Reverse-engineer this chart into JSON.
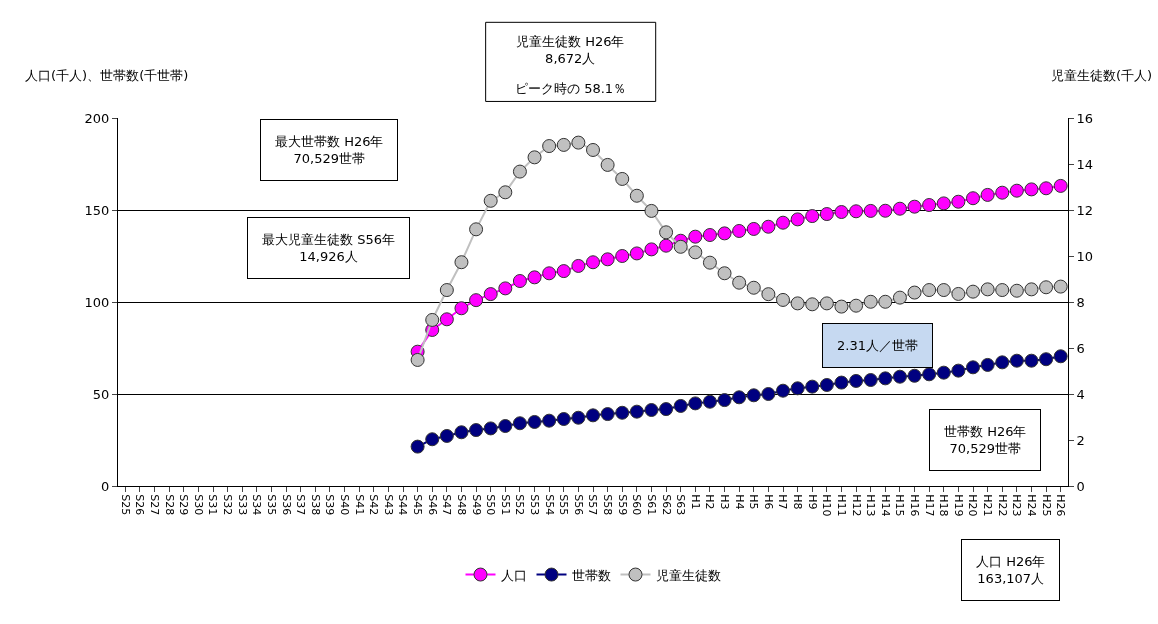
{
  "chart_data": {
    "type": "line",
    "ylabel": "人口(千人)、世帯数(千世帯)",
    "y2label": "児童生徒数(千人)",
    "categories": [
      "S25",
      "S26",
      "S27",
      "S28",
      "S29",
      "S30",
      "S31",
      "S32",
      "S33",
      "S34",
      "S35",
      "S36",
      "S37",
      "S38",
      "S39",
      "S40",
      "S41",
      "S42",
      "S43",
      "S44",
      "S45",
      "S46",
      "S47",
      "S48",
      "S49",
      "S50",
      "S51",
      "S52",
      "S53",
      "S54",
      "S55",
      "S56",
      "S57",
      "S58",
      "S59",
      "S60",
      "S61",
      "S62",
      "S63",
      "H1",
      "H2",
      "H3",
      "H4",
      "H5",
      "H6",
      "H7",
      "H8",
      "H9",
      "H10",
      "H11",
      "H12",
      "H13",
      "H14",
      "H15",
      "H16",
      "H17",
      "H18",
      "H19",
      "H20",
      "H21",
      "H22",
      "H23",
      "H24",
      "H25",
      "H26"
    ],
    "series": [
      {
        "name": "人口",
        "color": "#ff00ff",
        "values": [
          null,
          null,
          null,
          null,
          null,
          null,
          null,
          null,
          null,
          null,
          null,
          null,
          null,
          null,
          null,
          null,
          null,
          null,
          null,
          null,
          73.0,
          84.8,
          90.6,
          96.6,
          101.0,
          104.3,
          107.4,
          111.4,
          113.4,
          115.6,
          116.8,
          119.6,
          121.6,
          123.2,
          125.0,
          126.4,
          128.6,
          130.6,
          133.3,
          135.5,
          136.4,
          137.3,
          138.6,
          139.7,
          140.9,
          143.1,
          144.9,
          146.7,
          147.8,
          148.9,
          149.3,
          149.5,
          149.6,
          150.7,
          151.8,
          152.7,
          153.6,
          154.5,
          156.4,
          158.2,
          159.4,
          160.5,
          161.2,
          161.8,
          163.1
        ]
      },
      {
        "name": "世帯数",
        "color": "#000080",
        "values": [
          null,
          null,
          null,
          null,
          null,
          null,
          null,
          null,
          null,
          null,
          null,
          null,
          null,
          null,
          null,
          null,
          null,
          null,
          null,
          null,
          21.4,
          25.4,
          27.2,
          29.2,
          30.4,
          31.3,
          32.6,
          34.1,
          34.8,
          35.5,
          36.4,
          37.1,
          38.4,
          39.1,
          39.8,
          40.4,
          41.3,
          41.8,
          43.5,
          44.9,
          45.8,
          46.7,
          48.2,
          49.3,
          50.0,
          51.8,
          53.1,
          54.0,
          54.9,
          56.2,
          57.1,
          57.6,
          58.5,
          59.4,
          59.9,
          60.7,
          61.6,
          62.7,
          64.5,
          65.8,
          67.2,
          68.1,
          68.1,
          68.9,
          70.5
        ]
      },
      {
        "name": "児童生徒数",
        "color": "#c0c0c0",
        "axis": "y2",
        "values": [
          null,
          null,
          null,
          null,
          null,
          null,
          null,
          null,
          null,
          null,
          null,
          null,
          null,
          null,
          null,
          null,
          null,
          null,
          null,
          null,
          5.48,
          7.22,
          8.52,
          9.73,
          11.16,
          12.4,
          12.77,
          13.67,
          14.29,
          14.78,
          14.83,
          14.93,
          14.61,
          13.96,
          13.35,
          12.62,
          11.96,
          11.03,
          10.4,
          10.16,
          9.71,
          9.25,
          8.84,
          8.62,
          8.34,
          8.09,
          7.94,
          7.9,
          7.94,
          7.8,
          7.84,
          8.01,
          8.01,
          8.19,
          8.41,
          8.52,
          8.52,
          8.35,
          8.45,
          8.55,
          8.52,
          8.49,
          8.55,
          8.64,
          8.67
        ]
      }
    ],
    "ylim": [
      0,
      200
    ],
    "yticks": [
      0,
      50,
      100,
      150,
      200
    ],
    "y2lim": [
      0,
      16
    ],
    "y2ticks": [
      0,
      2,
      4,
      6,
      8,
      10,
      12,
      14,
      16
    ],
    "grid": "y",
    "legend": "bottom",
    "marker": "circle",
    "line_style": "solid",
    "annotations": [
      "児童生徒数 H26年\n8,672人",
      "ピーク時の 58.1％",
      "最大世帯数 H26年\n70,529世帯",
      "最大児童生徒数 S56年\n14,926人",
      "2.31人／世帯",
      "世帯数 H26年\n70,529世帯",
      "人口 H26年\n163,107人"
    ]
  }
}
